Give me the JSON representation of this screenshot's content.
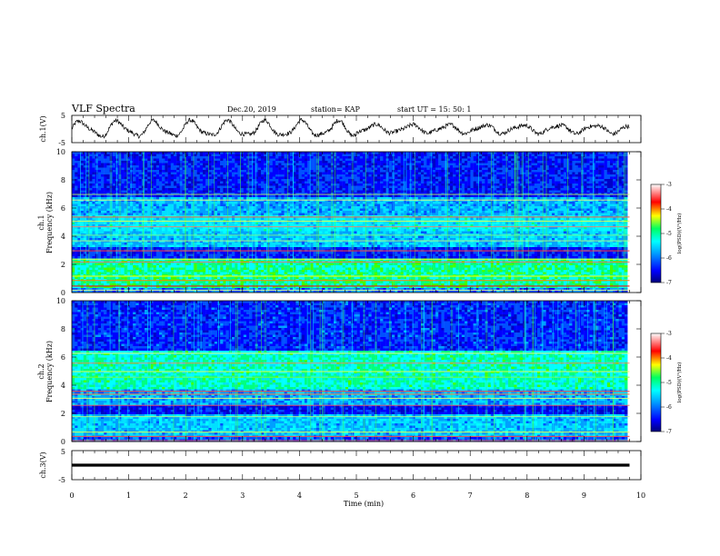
{
  "header": {
    "title": "VLF Spectra",
    "date": "Dec.20, 2019",
    "station": "station= KAP",
    "start": "start  UT =   15: 50: 1"
  },
  "chart_data": [
    {
      "type": "line",
      "ylabel": "ch.1(V)",
      "yticks": [
        "5",
        "-5"
      ],
      "ylim": [
        -5,
        5
      ],
      "xlim": [
        0,
        10
      ],
      "data_end_min": 9.8,
      "description_values": {
        "mean": 0,
        "amplitude": 3.0
      }
    },
    {
      "type": "heatmap",
      "ylabel": "Frequency (kHz)",
      "channel": "ch.1",
      "yticks": [
        "0",
        "2",
        "4",
        "6",
        "8",
        "10"
      ],
      "ylim": [
        0,
        10
      ],
      "xlim": [
        0,
        10
      ],
      "colorbar": {
        "label": "log(PSD)(V²/Hz)",
        "ticks": [
          "-3",
          "-4",
          "-5",
          "-6",
          "-7"
        ],
        "range": [
          -7,
          -3
        ]
      }
    },
    {
      "type": "heatmap",
      "ylabel": "Frequency (kHz)",
      "channel": "ch.2",
      "yticks": [
        "0",
        "2",
        "4",
        "6",
        "8",
        "10"
      ],
      "ylim": [
        0,
        10
      ],
      "xlim": [
        0,
        10
      ],
      "colorbar": {
        "label": "log(PSD)(V²/Hz)",
        "ticks": [
          "-3",
          "-4",
          "-5",
          "-6",
          "-7"
        ],
        "range": [
          -7,
          -3
        ]
      }
    },
    {
      "type": "line",
      "ylabel": "ch.3(V)",
      "yticks": [
        "5",
        "-5"
      ],
      "ylim": [
        -5,
        5
      ],
      "xlim": [
        0,
        10
      ],
      "constant_value": 0,
      "data_end_min": 9.8
    }
  ],
  "xaxis": {
    "label": "Time (min)",
    "ticks": [
      "0",
      "1",
      "2",
      "3",
      "4",
      "5",
      "6",
      "7",
      "8",
      "9",
      "10"
    ]
  },
  "colors": {
    "axis": "#000000",
    "trace": "#000000"
  }
}
